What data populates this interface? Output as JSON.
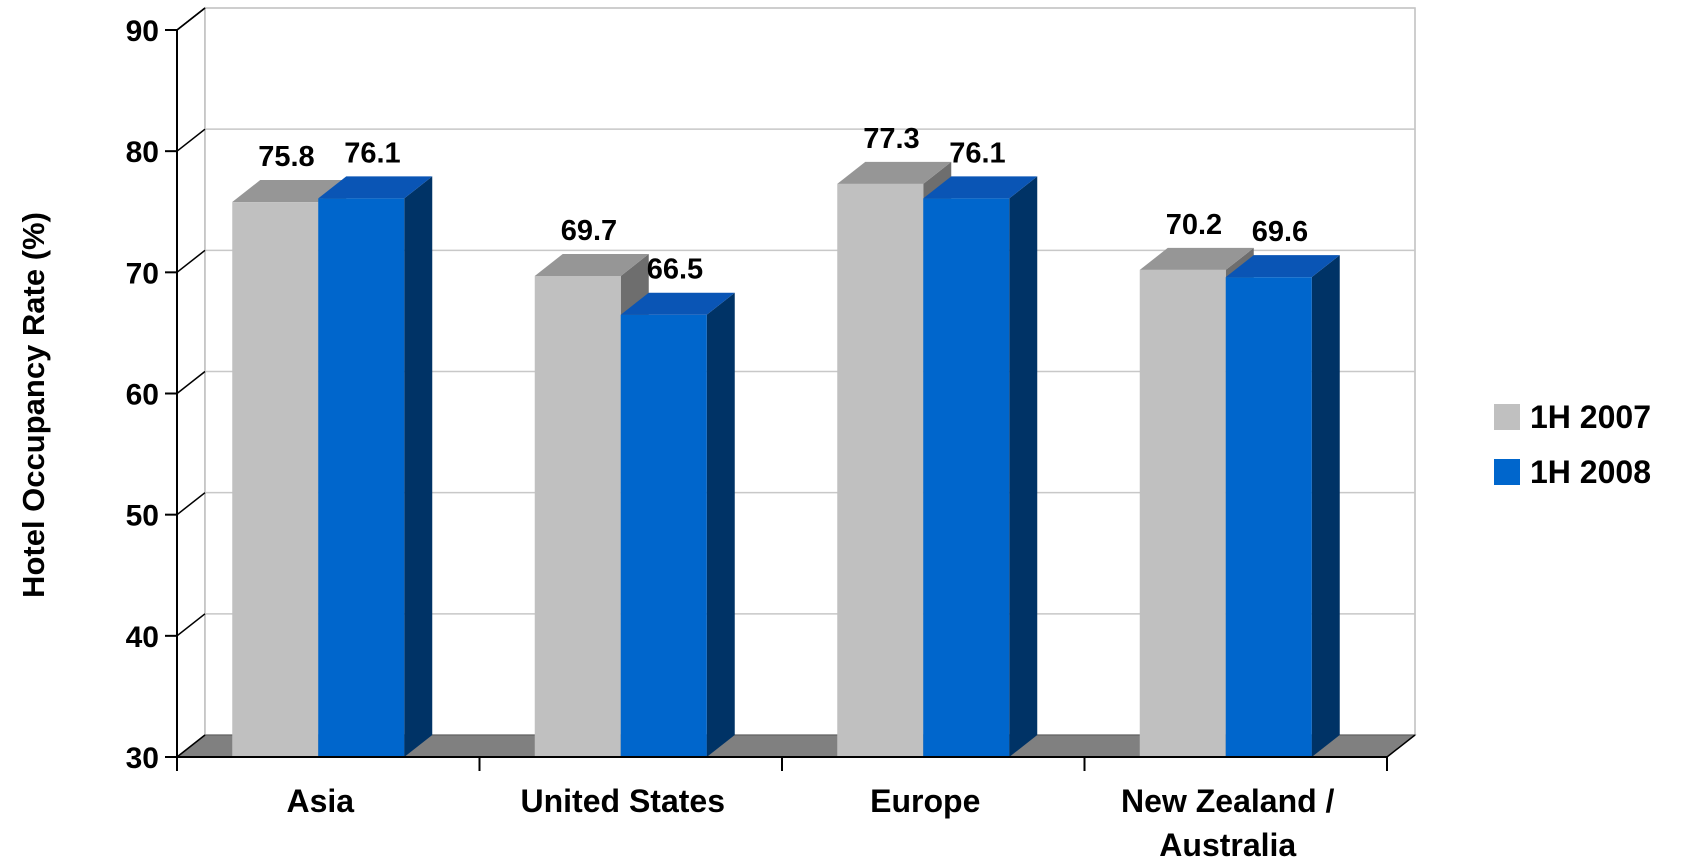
{
  "chart_data": {
    "type": "bar",
    "ylabel": "Hotel Occupancy Rate (%)",
    "xlabel": "",
    "ylim": [
      30,
      90
    ],
    "yticks": [
      "30",
      "40",
      "50",
      "60",
      "70",
      "80",
      "90"
    ],
    "grid": true,
    "legend_position": "right",
    "categories": [
      {
        "lines": [
          "Asia"
        ]
      },
      {
        "lines": [
          "United States"
        ]
      },
      {
        "lines": [
          "Europe"
        ]
      },
      {
        "lines": [
          "New Zealand /",
          "Australia"
        ]
      }
    ],
    "series": [
      {
        "name": "1H 2007",
        "values": [
          75.8,
          69.7,
          77.3,
          70.2
        ],
        "labels": [
          "75.8",
          "69.7",
          "77.3",
          "70.2"
        ],
        "color": "#c0c0c0",
        "top_color": "#969696",
        "side_color": "#6e6e6e"
      },
      {
        "name": "1H 2008",
        "values": [
          76.1,
          66.5,
          76.1,
          69.6
        ],
        "labels": [
          "76.1",
          "66.5",
          "76.1",
          "69.6"
        ],
        "color": "#0066cc",
        "top_color": "#0a55b5",
        "side_color": "#003366"
      }
    ]
  }
}
